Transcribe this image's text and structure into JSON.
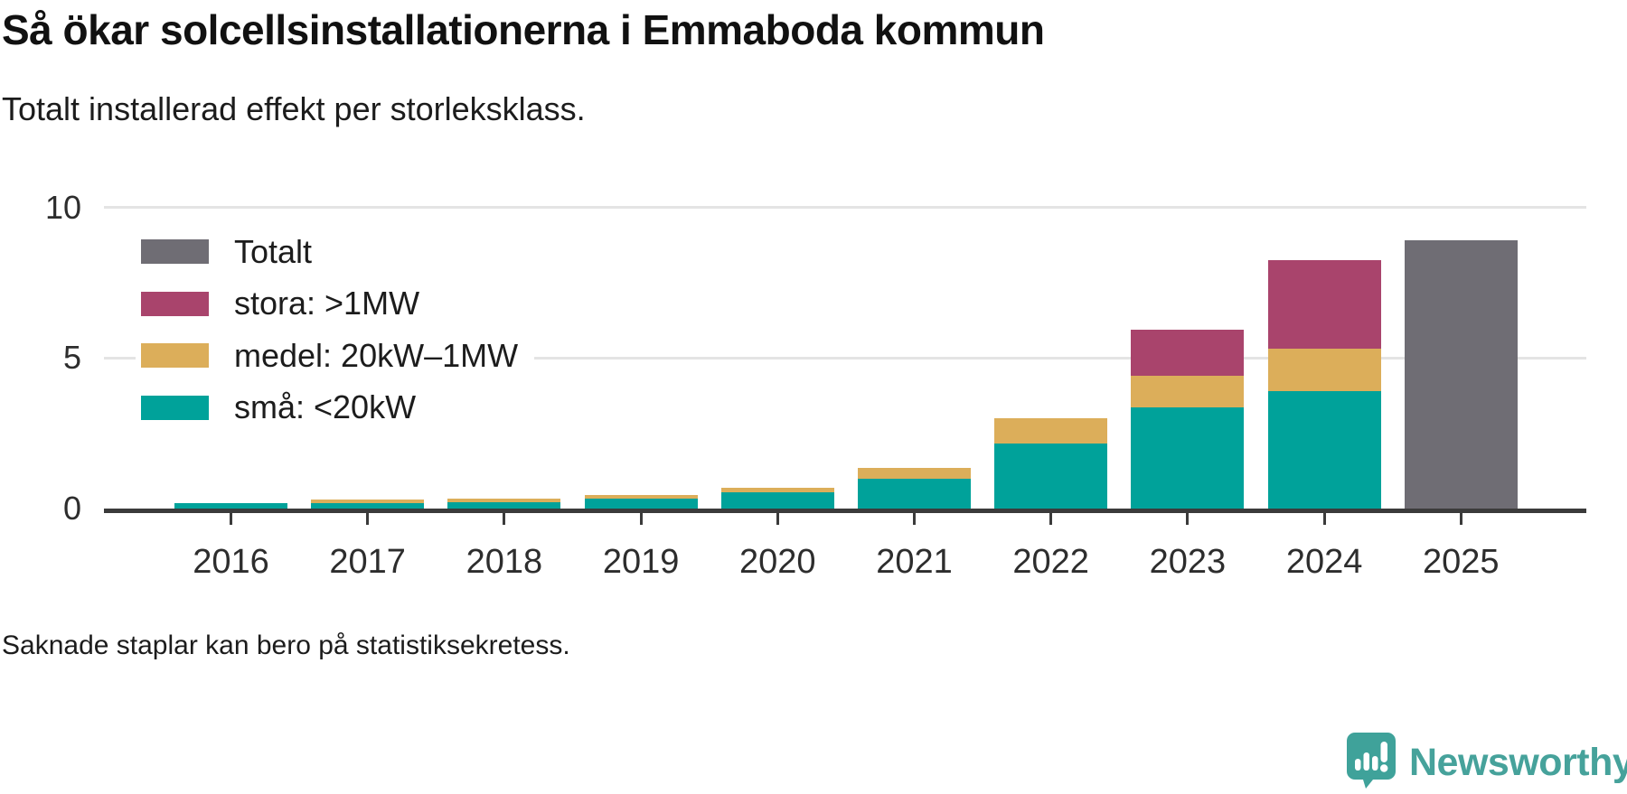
{
  "footnote": "Saknade staplar kan bero på statistiksekretess.",
  "brand": {
    "name": "Newsworthy",
    "color": "#46a29b",
    "icon": "newsworthy-speech-bubble-chart-icon"
  },
  "chart_data": {
    "type": "bar",
    "stacked": true,
    "title": "Så ökar solcellsinstallationerna i Emmaboda kommun",
    "subtitle": "Totalt installerad effekt per storleksklass.",
    "categories": [
      "2016",
      "2017",
      "2018",
      "2019",
      "2020",
      "2021",
      "2022",
      "2023",
      "2024",
      "2025"
    ],
    "series": [
      {
        "name": "små: <20kW",
        "color": "#00a29a",
        "values": [
          0.17,
          0.18,
          0.22,
          0.33,
          0.53,
          1.0,
          2.15,
          3.35,
          3.9,
          null
        ]
      },
      {
        "name": "medel: 20kW–1MW",
        "color": "#dcae5a",
        "values": [
          null,
          0.12,
          0.11,
          0.12,
          0.15,
          0.35,
          0.85,
          1.05,
          1.4,
          null
        ]
      },
      {
        "name": "stora: >1MW",
        "color": "#a9446c",
        "values": [
          null,
          null,
          null,
          null,
          null,
          null,
          null,
          1.55,
          2.95,
          null
        ]
      },
      {
        "name": "Totalt",
        "color": "#6f6d74",
        "values": [
          null,
          null,
          null,
          null,
          null,
          null,
          null,
          null,
          null,
          8.9
        ]
      }
    ],
    "legend": [
      {
        "label": "Totalt",
        "color": "#6f6d74"
      },
      {
        "label": "stora: >1MW",
        "color": "#a9446c"
      },
      {
        "label": "medel: 20kW–1MW",
        "color": "#dcae5a"
      },
      {
        "label": "små: <20kW",
        "color": "#00a29a"
      }
    ],
    "legend_position": "top-left",
    "ylim": [
      0,
      10
    ],
    "yticks": [
      0,
      5,
      10
    ],
    "grid": "horizontal",
    "axis_color": "#3b3b3b",
    "grid_color": "#e4e4e4"
  }
}
